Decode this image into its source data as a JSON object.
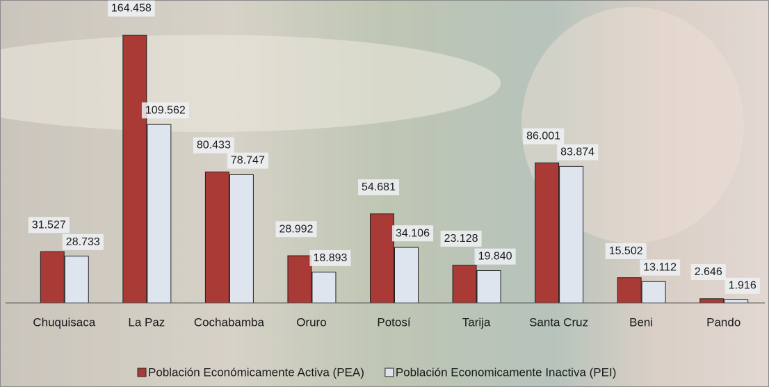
{
  "chart_data": {
    "type": "bar",
    "categories": [
      "Chuquisaca",
      "La Paz",
      "Cochabamba",
      "Oruro",
      "Potosí",
      "Tarija",
      "Santa Cruz",
      "Beni",
      "Pando"
    ],
    "series": [
      {
        "name": "Población Económicamente Activa (PEA)",
        "color": "#a93a35",
        "values": [
          31.527,
          164.458,
          80.433,
          28.992,
          54.681,
          23.128,
          86.001,
          15.502,
          2.646
        ],
        "value_labels": [
          "31.527",
          "164.458",
          "80.433",
          "28.992",
          "54.681",
          "23.128",
          "86.001",
          "15.502",
          "2.646"
        ]
      },
      {
        "name": "Población Economicamente Inactiva (PEI)",
        "color": "#dfe5ef",
        "values": [
          28.733,
          109.562,
          78.747,
          18.893,
          34.106,
          19.84,
          83.874,
          13.112,
          1.916
        ],
        "value_labels": [
          "28.733",
          "109.562",
          "78.747",
          "18.893",
          "34.106",
          "19.840",
          "83.874",
          "13.112",
          "1.916"
        ]
      }
    ],
    "ylim": [
      0,
      186
    ],
    "legend": "bottom"
  }
}
